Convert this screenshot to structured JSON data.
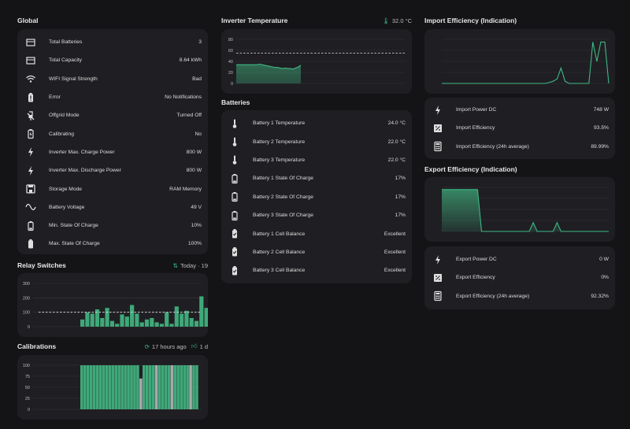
{
  "global": {
    "title": "Global",
    "rows": [
      {
        "icon": "battery-bank-icon",
        "label": "Total Batteries",
        "value": "3"
      },
      {
        "icon": "battery-bank-icon",
        "label": "Total Capacity",
        "value": "8.64 kWh"
      },
      {
        "icon": "wifi-icon",
        "label": "WIFI Signal Strength",
        "value": "Bad"
      },
      {
        "icon": "battery-alert-icon",
        "label": "Error",
        "value": "No Notifications"
      },
      {
        "icon": "power-off-icon",
        "label": "Offgrid Mode",
        "value": "Turned Off"
      },
      {
        "icon": "battery-charging-icon",
        "label": "Calibrating",
        "value": "No"
      },
      {
        "icon": "flash-icon",
        "label": "Inverter Max. Charge Power",
        "value": "800 W"
      },
      {
        "icon": "flash-icon",
        "label": "Inverter Max. Discharge Power",
        "value": "800 W"
      },
      {
        "icon": "save-icon",
        "label": "Storage Mode",
        "value": "RAM Memory"
      },
      {
        "icon": "sine-wave-icon",
        "label": "Battery Voltage",
        "value": "49 V"
      },
      {
        "icon": "battery-low-icon",
        "label": "Min. State Of Charge",
        "value": "10%"
      },
      {
        "icon": "battery-full-icon",
        "label": "Max. State Of Charge",
        "value": "100%"
      }
    ]
  },
  "relay": {
    "title": "Relay Switches",
    "meta": "Today · 19",
    "chart_data": {
      "type": "bar",
      "ylim": [
        0,
        300
      ],
      "yticks": [
        "300",
        "200",
        "100",
        "0"
      ],
      "threshold": 100,
      "values": [
        50,
        100,
        90,
        120,
        60,
        130,
        40,
        20,
        85,
        70,
        150,
        90,
        30,
        50,
        60,
        30,
        20,
        100,
        20,
        140,
        90,
        110,
        60,
        40,
        210,
        130,
        110,
        170,
        110,
        150,
        90,
        60,
        20
      ]
    }
  },
  "calibrations": {
    "title": "Calibrations",
    "meta_time": "17 hours ago",
    "meta_count": "1 d",
    "chart_data": {
      "type": "bar",
      "ylim": [
        0,
        100
      ],
      "yticks": [
        "100",
        "75",
        "50",
        "25",
        "0"
      ],
      "values": [
        100,
        100,
        100,
        100,
        100,
        100,
        100,
        100,
        100,
        100,
        100,
        100,
        100,
        100,
        100,
        100,
        100,
        100,
        100,
        70,
        100,
        100,
        100,
        100,
        100,
        100,
        100,
        100,
        100,
        100,
        100,
        100,
        100,
        100,
        100,
        100,
        100,
        100
      ],
      "gray": [
        19,
        24,
        29,
        35
      ]
    }
  },
  "inverter": {
    "title": "Inverter Temperature",
    "meta": "32.0 °C",
    "chart_data": {
      "type": "area",
      "ylim": [
        0,
        80
      ],
      "yticks": [
        "80",
        "60",
        "40",
        "20",
        "0"
      ],
      "threshold": 55,
      "values": [
        34,
        34,
        34,
        34,
        34,
        34,
        34,
        34,
        34,
        35,
        34,
        33,
        32,
        31,
        30,
        29,
        29,
        28,
        27,
        28,
        27,
        27,
        26,
        28,
        30,
        33
      ]
    }
  },
  "batteries": {
    "title": "Batteries",
    "rows": [
      {
        "icon": "thermometer-icon",
        "label": "Battery 1 Temperature",
        "value": "24.0 °C"
      },
      {
        "icon": "thermometer-icon",
        "label": "Battery 2 Temperature",
        "value": "22.0 °C"
      },
      {
        "icon": "thermometer-icon",
        "label": "Battery 3 Temperature",
        "value": "22.0 °C"
      },
      {
        "icon": "battery-low-icon",
        "label": "Battery 1 State Of Charge",
        "value": "17%"
      },
      {
        "icon": "battery-low-icon",
        "label": "Battery 2 State Of Charge",
        "value": "17%"
      },
      {
        "icon": "battery-low-icon",
        "label": "Battery 3 State Of Charge",
        "value": "17%"
      },
      {
        "icon": "battery-check-icon",
        "label": "Battery 1 Cell Balance",
        "value": "Excellent"
      },
      {
        "icon": "battery-check-icon",
        "label": "Battery 2 Cell Balance",
        "value": "Excellent"
      },
      {
        "icon": "battery-check-icon",
        "label": "Battery 3 Cell Balance",
        "value": "Excellent"
      }
    ]
  },
  "import_eff": {
    "title": "Import Efficiency (Indication)",
    "chart_data": {
      "type": "line",
      "ylim": [
        0,
        100
      ],
      "yticks": [
        "100",
        "75",
        "50",
        "25",
        "0"
      ],
      "values": [
        0,
        0,
        0,
        0,
        0,
        0,
        0,
        0,
        0,
        0,
        0,
        0,
        0,
        0,
        0,
        0,
        0,
        0,
        0,
        0,
        0,
        0,
        0,
        0,
        0,
        0,
        0,
        2,
        5,
        10,
        35,
        5,
        0,
        0,
        0,
        0,
        0,
        0,
        94,
        50,
        94,
        94,
        0
      ]
    },
    "rows": [
      {
        "icon": "flash-icon",
        "label": "Import Power DC",
        "value": "748 W"
      },
      {
        "icon": "percent-icon",
        "label": "Import Efficiency",
        "value": "93.5%"
      },
      {
        "icon": "calculator-icon",
        "label": "Import Efficiency (24h average)",
        "value": "89.99%"
      }
    ]
  },
  "export_eff": {
    "title": "Export Efficiency (Indication)",
    "chart_data": {
      "type": "area",
      "ylim": [
        0,
        100
      ],
      "yticks": [
        "100",
        "75",
        "50",
        "25",
        "0"
      ],
      "values": [
        95,
        95,
        95,
        95,
        95,
        95,
        95,
        95,
        95,
        95,
        0,
        0,
        0,
        0,
        0,
        0,
        0,
        0,
        0,
        0,
        0,
        0,
        0,
        20,
        0,
        0,
        0,
        0,
        0,
        20,
        0,
        0,
        0,
        0,
        0,
        0,
        0,
        0,
        0,
        0,
        0,
        0,
        0
      ]
    },
    "rows": [
      {
        "icon": "flash-icon",
        "label": "Export Power DC",
        "value": "0 W"
      },
      {
        "icon": "percent-icon",
        "label": "Export Efficiency",
        "value": "0%"
      },
      {
        "icon": "calculator-icon",
        "label": "Export Efficiency (24h average)",
        "value": "92.32%"
      }
    ]
  }
}
